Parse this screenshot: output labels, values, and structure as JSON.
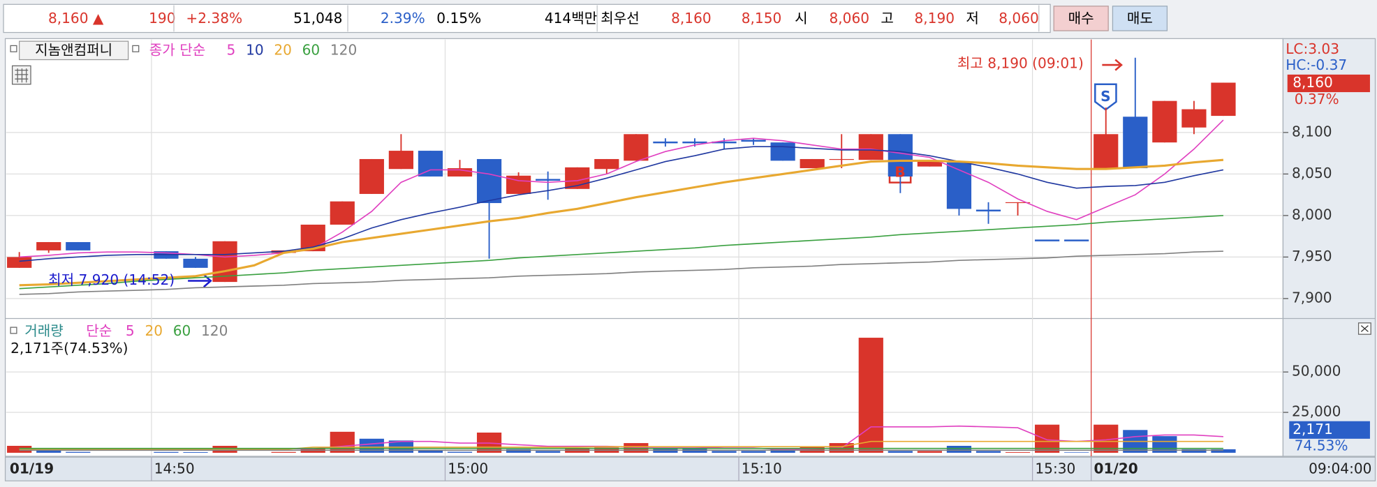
{
  "header": {
    "items": [
      "8,160 ▲",
      "190",
      "+2.38%",
      "51,048",
      "2.39%",
      "0.15%",
      "414백만",
      "최우선",
      "8,160",
      "8,150",
      "시",
      "8,060",
      "고",
      "8,190",
      "저",
      "8,060"
    ],
    "buy": "매수",
    "sell": "매도"
  },
  "chart_data": [
    {
      "type": "candlestick",
      "title": "지놈앤컴퍼니",
      "ma_label": "종가 단순",
      "categories": [
        "01/19",
        null,
        null,
        null,
        null,
        "14:50",
        null,
        null,
        null,
        null,
        null,
        null,
        null,
        null,
        null,
        "15:00",
        null,
        null,
        null,
        null,
        null,
        null,
        null,
        null,
        null,
        "15:10",
        null,
        null,
        null,
        null,
        null,
        null,
        null,
        null,
        null,
        "15:30",
        null,
        "01/20",
        null,
        null,
        null,
        null
      ],
      "time_label": "09:04:00",
      "open": [
        7937,
        7958,
        7968,
        null,
        null,
        7957,
        7948,
        7920,
        null,
        7955,
        7957,
        7989,
        8026,
        8056,
        8078,
        8047,
        8068,
        8026,
        8043,
        8032,
        8056,
        8066,
        8088,
        8088,
        8088,
        8090,
        8088,
        8057,
        8067,
        8067,
        8098,
        8059,
        8064,
        8006,
        8015,
        7970,
        7970,
        8057,
        8119,
        8088,
        8106,
        8120
      ],
      "high": [
        7956,
        7968,
        7968,
        null,
        null,
        7957,
        7950,
        7969,
        null,
        7958,
        7989,
        8017,
        8068,
        8098,
        8078,
        8067,
        8068,
        8052,
        8053,
        8058,
        8068,
        8098,
        8093,
        8093,
        8093,
        8093,
        8088,
        8068,
        8098,
        8098,
        8098,
        8066,
        8064,
        8016,
        8016,
        7970,
        7970,
        8130,
        8190,
        8138,
        8138,
        8160
      ],
      "low": [
        7937,
        7955,
        7958,
        null,
        null,
        7948,
        7937,
        7920,
        null,
        7955,
        7957,
        7989,
        8026,
        8056,
        8047,
        8047,
        7948,
        8026,
        8019,
        8032,
        8050,
        8066,
        8083,
        8083,
        8080,
        8085,
        8066,
        8057,
        8057,
        8067,
        8027,
        8059,
        8000,
        7990,
        8000,
        7970,
        7970,
        8057,
        8057,
        8088,
        8098,
        8120
      ],
      "close": [
        7950,
        7968,
        7958,
        null,
        null,
        7948,
        7937,
        7969,
        null,
        7958,
        7989,
        8017,
        8068,
        8078,
        8047,
        8057,
        8015,
        8048,
        8043,
        8058,
        8068,
        8098,
        8088,
        8088,
        8088,
        8090,
        8066,
        8068,
        8068,
        8098,
        8047,
        8066,
        8008,
        8006,
        8016,
        7970,
        7970,
        8098,
        8057,
        8138,
        8128,
        8160
      ],
      "up_color": "#d9342b",
      "down_color": "#2a5fc8",
      "series": [
        {
          "name": "5",
          "color": "#e040c0",
          "values": [
            7950,
            7952,
            7955,
            7956,
            7956,
            7955,
            7953,
            7950,
            7952,
            7955,
            7960,
            7980,
            8005,
            8040,
            8055,
            8055,
            8050,
            8042,
            8040,
            8042,
            8050,
            8065,
            8077,
            8085,
            8090,
            8093,
            8090,
            8085,
            8080,
            8080,
            8075,
            8070,
            8055,
            8040,
            8020,
            8005,
            7995,
            8010,
            8025,
            8050,
            8080,
            8115
          ]
        },
        {
          "name": "10",
          "color": "#2038a0",
          "values": [
            7945,
            7948,
            7950,
            7952,
            7953,
            7953,
            7953,
            7953,
            7955,
            7957,
            7962,
            7972,
            7985,
            7995,
            8003,
            8010,
            8018,
            8025,
            8030,
            8036,
            8045,
            8055,
            8065,
            8072,
            8080,
            8083,
            8083,
            8081,
            8079,
            8079,
            8077,
            8072,
            8065,
            8058,
            8050,
            8040,
            8033,
            8035,
            8036,
            8040,
            8048,
            8055
          ]
        },
        {
          "name": "20",
          "color": "#e8a830",
          "values": [
            7916,
            7917,
            7919,
            7921,
            7923,
            7925,
            7927,
            7933,
            7940,
            7955,
            7960,
            7968,
            7973,
            7978,
            7983,
            7988,
            7993,
            7997,
            8003,
            8008,
            8015,
            8022,
            8028,
            8034,
            8040,
            8045,
            8050,
            8055,
            8060,
            8065,
            8066,
            8066,
            8065,
            8063,
            8060,
            8058,
            8056,
            8056,
            8058,
            8060,
            8064,
            8067
          ]
        },
        {
          "name": "60",
          "color": "#3aa040",
          "values": [
            7912,
            7914,
            7916,
            7918,
            7921,
            7923,
            7925,
            7927,
            7929,
            7931,
            7934,
            7936,
            7938,
            7940,
            7942,
            7944,
            7946,
            7949,
            7951,
            7953,
            7955,
            7957,
            7959,
            7961,
            7964,
            7966,
            7968,
            7970,
            7972,
            7974,
            7977,
            7979,
            7981,
            7983,
            7985,
            7987,
            7989,
            7992,
            7994,
            7996,
            7998,
            8000
          ]
        },
        {
          "name": "120",
          "color": "#808080",
          "values": [
            7905,
            7906,
            7908,
            7909,
            7910,
            7911,
            7913,
            7914,
            7915,
            7916,
            7918,
            7919,
            7920,
            7922,
            7923,
            7924,
            7925,
            7927,
            7928,
            7929,
            7930,
            7932,
            7933,
            7934,
            7935,
            7937,
            7938,
            7939,
            7941,
            7942,
            7943,
            7944,
            7946,
            7947,
            7948,
            7949,
            7951,
            7952,
            7953,
            7954,
            7956,
            7957
          ]
        }
      ],
      "ylim": [
        7877,
        8212
      ],
      "yticks": [
        {
          "value": 7900,
          "label": "7,900"
        },
        {
          "value": 7950,
          "label": "7,950"
        },
        {
          "value": 8000,
          "label": "8,000"
        },
        {
          "value": 8050,
          "label": "8,050"
        },
        {
          "value": 8100,
          "label": "8,100"
        }
      ],
      "grid": true,
      "annotations": {
        "high": "최고 8,190 (09:01)",
        "low": "최저 7,920 (14:52)",
        "sell_marker": "S",
        "buy_marker": "B"
      },
      "side_labels": {
        "lc": "LC:3.03",
        "hc": "HC:-0.37",
        "last": "8,160",
        "last_pct": "0.37%"
      }
    },
    {
      "type": "bar",
      "title": "거래량",
      "ma_label": "단순",
      "summary": "2,171주(74.53%)",
      "values": [
        4300,
        1600,
        540,
        null,
        null,
        500,
        400,
        4300,
        null,
        500,
        2700,
        13000,
        8700,
        7600,
        1600,
        600,
        12500,
        2200,
        1100,
        2700,
        3300,
        6000,
        2700,
        2700,
        1100,
        1100,
        2200,
        3800,
        6000,
        71200,
        1100,
        1100,
        4300,
        1100,
        400,
        17400,
        300,
        17400,
        14100,
        10300,
        2200,
        2171
      ],
      "colors": [
        "#d9342b",
        "#2a5fc8",
        "#2a5fc8",
        null,
        null,
        "#2a5fc8",
        "#2a5fc8",
        "#d9342b",
        null,
        "#d9342b",
        "#d9342b",
        "#d9342b",
        "#2a5fc8",
        "#2a5fc8",
        "#2a5fc8",
        "#2a5fc8",
        "#d9342b",
        "#2a5fc8",
        "#2a5fc8",
        "#d9342b",
        "#d9342b",
        "#d9342b",
        "#2a5fc8",
        "#2a5fc8",
        "#2a5fc8",
        "#2a5fc8",
        "#2a5fc8",
        "#d9342b",
        "#d9342b",
        "#d9342b",
        "#2a5fc8",
        "#d9342b",
        "#2a5fc8",
        "#2a5fc8",
        "#d9342b",
        "#d9342b",
        "#2a5fc8",
        "#d9342b",
        "#2a5fc8",
        "#2a5fc8",
        "#2a5fc8",
        "#2a5fc8"
      ],
      "series": [
        {
          "name": "5",
          "color": "#e040c0",
          "values": [
            2500,
            2500,
            2500,
            2500,
            2500,
            2500,
            2500,
            2500,
            2500,
            2500,
            2500,
            4000,
            5500,
            7000,
            7000,
            6000,
            6000,
            5000,
            4000,
            4000,
            4000,
            3500,
            3500,
            3500,
            3000,
            3000,
            2000,
            2500,
            3000,
            16000,
            16000,
            16000,
            16500,
            16000,
            15500,
            8000,
            7000,
            8000,
            10000,
            11000,
            11000,
            10000
          ]
        },
        {
          "name": "20",
          "color": "#e8a830",
          "values": [
            2000,
            2000,
            2000,
            2000,
            2000,
            2000,
            2000,
            2000,
            2000,
            2000,
            3500,
            3500,
            3500,
            3500,
            3500,
            3500,
            3500,
            3500,
            3500,
            3500,
            3800,
            3800,
            3800,
            3800,
            3800,
            3800,
            3800,
            3800,
            3800,
            7000,
            7000,
            7000,
            7000,
            7000,
            7000,
            7000,
            7000,
            7000,
            7000,
            7000,
            7000,
            7000
          ]
        },
        {
          "name": "60",
          "color": "#3aa040",
          "values": [
            2700,
            2700,
            2700,
            2700,
            2700,
            2700,
            2700,
            2700,
            2700,
            2700,
            2700,
            2700,
            2700,
            2700,
            2700,
            2700,
            2700,
            2700,
            2700,
            2700,
            2700,
            2700,
            2700,
            2700,
            2700,
            2700,
            2700,
            2700,
            2700,
            2700,
            2700,
            2700,
            2700,
            2700,
            2700,
            2700,
            2700,
            2700,
            2700,
            2700,
            2700,
            2700
          ]
        },
        {
          "name": "120",
          "color": "#808080",
          "values": [
            1600,
            1600,
            1600,
            1600,
            1600,
            1600,
            1600,
            1600,
            1600,
            1600,
            1600,
            1600,
            1600,
            1600,
            1600,
            1600,
            1600,
            1600,
            1600,
            1600,
            1600,
            1600,
            1600,
            1600,
            1600,
            1600,
            1600,
            1600,
            1600,
            1600,
            1600,
            1600,
            1600,
            1600,
            1600,
            1600,
            1600,
            1600,
            1600,
            1600,
            1600,
            1600
          ]
        }
      ],
      "ylim": [
        0,
        82000
      ],
      "yticks": [
        {
          "value": 25000,
          "label": "25,000"
        },
        {
          "value": 50000,
          "label": "50,000"
        }
      ],
      "grid": true,
      "side_labels": {
        "last": "2,171",
        "last_pct": "74.53%"
      }
    }
  ]
}
